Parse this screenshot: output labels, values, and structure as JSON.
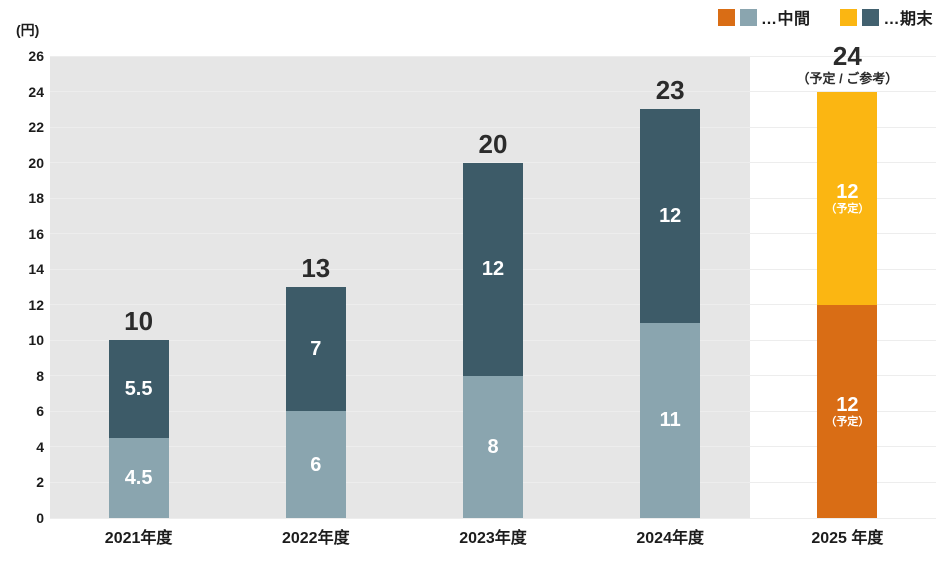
{
  "unit_label": "(円)",
  "legend": {
    "interim": {
      "label": "…中間",
      "swatch_forecast_color": "#d96d15",
      "swatch_actual_color": "#8aa5af"
    },
    "final": {
      "label": "…期末",
      "swatch_forecast_color": "#fbb612",
      "swatch_actual_color": "#42616f"
    }
  },
  "chart_data": {
    "type": "bar",
    "stacked": true,
    "title": "",
    "ylabel": "(円)",
    "xlabel": "",
    "categories": [
      "2021年度",
      "2022年度",
      "2023年度",
      "2024年度",
      "2025 年度"
    ],
    "series": [
      {
        "name": "中間",
        "values": [
          4.5,
          6,
          8,
          11,
          12
        ]
      },
      {
        "name": "期末",
        "values": [
          5.5,
          7,
          12,
          12,
          12
        ]
      }
    ],
    "totals": [
      "10",
      "13",
      "20",
      "23",
      "24"
    ],
    "forecast_index": 4,
    "forecast_segment_note": "（予定）",
    "forecast_total_note": "（予定 / ご参考）",
    "ylim": [
      0,
      26
    ],
    "ytick_step": 2,
    "yticks": [
      "0",
      "2",
      "4",
      "6",
      "8",
      "10",
      "12",
      "14",
      "16",
      "18",
      "20",
      "22",
      "24",
      "26"
    ],
    "grid": true,
    "legend_position": "top-right",
    "colors": {
      "interim_actual": "#8aa5af",
      "final_actual": "#3d5b68",
      "interim_forecast": "#d96d15",
      "final_forecast": "#fbb612",
      "actual_panel_bg": "#e6e6e6",
      "gridline": "#ededed",
      "bar_value_text": "#ffffff",
      "total_text": "#2b2b2b"
    }
  }
}
